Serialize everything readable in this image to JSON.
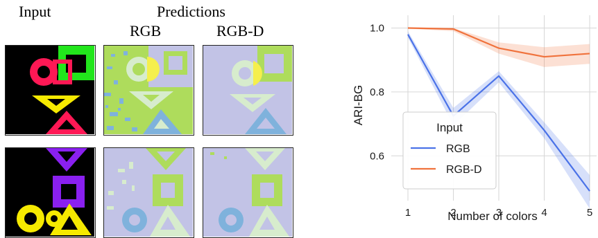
{
  "figure": {
    "col_input": "Input",
    "col_predictions": "Predictions",
    "sub_rgb": "RGB",
    "sub_rgbd": "RGB-D"
  },
  "panels": [
    {
      "name": "row1-input",
      "desc": "input scene with colored shapes"
    },
    {
      "name": "row1-pred-rgb",
      "desc": "RGB prediction"
    },
    {
      "name": "row1-pred-rgbd",
      "desc": "RGB-D prediction"
    },
    {
      "name": "row2-input",
      "desc": "input scene with colored shapes"
    },
    {
      "name": "row2-pred-rgb",
      "desc": "RGB prediction"
    },
    {
      "name": "row2-pred-rgbd",
      "desc": "RGB-D prediction"
    }
  ],
  "colors": {
    "rgb_line": "#4a72e8",
    "rgbd_line": "#f0723c",
    "grid": "#d6d6d6",
    "pred_bg": "#c2c3e6",
    "pred_green": "#aedc5c",
    "pred_pale": "#d7eccd",
    "pred_yellow": "#f5ef4c",
    "pred_blue": "#7fb2dc"
  },
  "chart_data": {
    "type": "line",
    "xlabel": "Number of colors",
    "ylabel": "ARI-BG",
    "x": [
      1,
      2,
      3,
      4,
      5
    ],
    "ylim": [
      0.46,
      1.04
    ],
    "yticks": [
      0.6,
      0.8,
      1.0
    ],
    "ytick_labels": [
      "0.6",
      "0.8",
      "1.0"
    ],
    "xtick_labels": [
      "1",
      "2",
      "3",
      "4",
      "5"
    ],
    "grid": true,
    "legend": {
      "title": "Input",
      "placement": "lower-left"
    },
    "series": [
      {
        "name": "RGB",
        "values": [
          0.98,
          0.725,
          0.85,
          0.68,
          0.49
        ],
        "lower": [
          0.97,
          0.695,
          0.83,
          0.655,
          0.435
        ],
        "upper": [
          0.99,
          0.75,
          0.865,
          0.705,
          0.54
        ]
      },
      {
        "name": "RGB-D",
        "values": [
          1.0,
          0.997,
          0.937,
          0.91,
          0.92
        ],
        "lower": [
          0.998,
          0.99,
          0.92,
          0.878,
          0.888
        ],
        "upper": [
          1.0,
          1.0,
          0.955,
          0.94,
          0.95
        ]
      }
    ]
  }
}
